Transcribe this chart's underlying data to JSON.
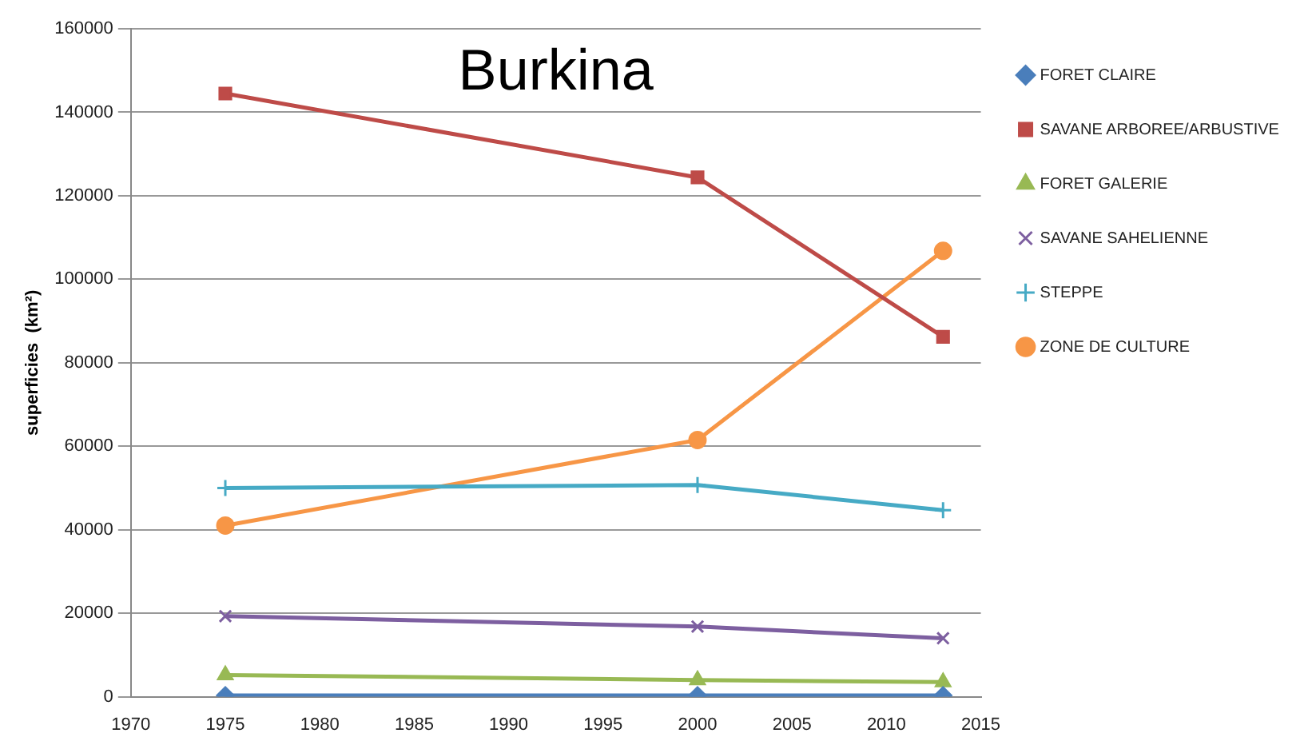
{
  "chart_data": {
    "type": "line",
    "title": "Burkina",
    "ylabel": "superficies  (km²)",
    "x": [
      1975,
      2000,
      2013
    ],
    "series": [
      {
        "name": "FORET CLAIRE",
        "color": "#4a7ebb",
        "marker": "diamond",
        "values": [
          300,
          300,
          300
        ]
      },
      {
        "name": "SAVANE ARBOREE/ARBUSTIVE",
        "color": "#be4b48",
        "marker": "square",
        "values": [
          144500,
          124400,
          86200
        ]
      },
      {
        "name": "FORET GALERIE",
        "color": "#98b954",
        "marker": "triangle",
        "values": [
          5200,
          4000,
          3500
        ]
      },
      {
        "name": "SAVANE SAHELIENNE",
        "color": "#7d5fa0",
        "marker": "cross",
        "values": [
          19300,
          16800,
          14000
        ]
      },
      {
        "name": "STEPPE",
        "color": "#46aac5",
        "marker": "plus",
        "values": [
          50000,
          50700,
          44700
        ]
      },
      {
        "name": "ZONE DE CULTURE",
        "color": "#f79646",
        "marker": "circle",
        "values": [
          41000,
          61500,
          106800
        ]
      }
    ],
    "xlim": [
      1970,
      2015
    ],
    "xticks": [
      1970,
      1975,
      1980,
      1985,
      1990,
      1995,
      2000,
      2005,
      2010,
      2015
    ],
    "ylim": [
      0,
      160000
    ],
    "yticks": [
      0,
      20000,
      40000,
      60000,
      80000,
      100000,
      120000,
      140000,
      160000
    ],
    "grid": "y",
    "legend": "right"
  }
}
